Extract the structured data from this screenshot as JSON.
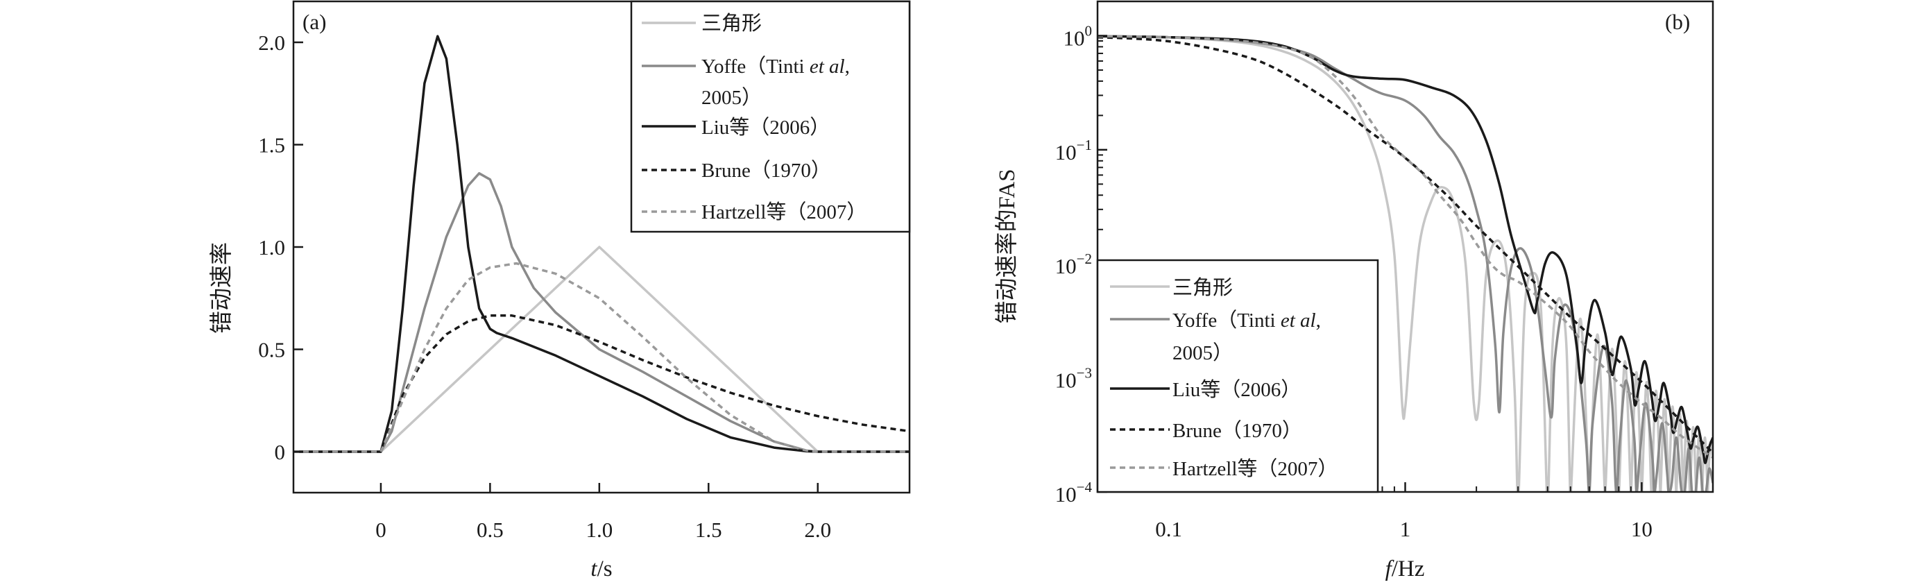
{
  "chart_data": [
    {
      "type": "line",
      "panel_label": "(a)",
      "xlabel": {
        "var": "t",
        "unit": "/s"
      },
      "ylabel": "错动速率",
      "xlim": [
        -0.4,
        2.42
      ],
      "ylim": [
        -0.2,
        2.2
      ],
      "xscale": "linear",
      "yscale": "linear",
      "grid": false,
      "legend_position": "top-right",
      "xticks": [
        {
          "v": 0,
          "label": "0"
        },
        {
          "v": 0.5,
          "label": "0.5"
        },
        {
          "v": 1.0,
          "label": "1.0"
        },
        {
          "v": 1.5,
          "label": "1.5"
        },
        {
          "v": 2.0,
          "label": "2.0"
        }
      ],
      "yticks": [
        {
          "v": 0,
          "label": "0"
        },
        {
          "v": 0.5,
          "label": "0.5"
        },
        {
          "v": 1.0,
          "label": "1.0"
        },
        {
          "v": 1.5,
          "label": "1.5"
        },
        {
          "v": 2.0,
          "label": "2.0"
        }
      ],
      "series": [
        {
          "name": "三角形",
          "color": "#c6c6c6",
          "style": "solid",
          "x": [
            -0.4,
            0,
            1,
            2,
            2.42
          ],
          "y": [
            0,
            0,
            1,
            0,
            0
          ]
        },
        {
          "name": "Yoffe (Tinti et al, 2005)",
          "color": "#8a8a8a",
          "style": "solid",
          "x": [
            -0.4,
            0,
            0.05,
            0.1,
            0.2,
            0.3,
            0.4,
            0.45,
            0.5,
            0.55,
            0.6,
            0.7,
            0.8,
            1.0,
            1.2,
            1.4,
            1.6,
            1.8,
            1.95,
            2.0,
            2.42
          ],
          "y": [
            0,
            0,
            0.1,
            0.3,
            0.7,
            1.05,
            1.3,
            1.36,
            1.33,
            1.2,
            1.0,
            0.8,
            0.68,
            0.5,
            0.39,
            0.27,
            0.15,
            0.05,
            0.005,
            0,
            0
          ]
        },
        {
          "name": "Liu等 (2006)",
          "color": "#1a1a1a",
          "style": "solid",
          "x": [
            -0.4,
            0,
            0.05,
            0.1,
            0.15,
            0.2,
            0.26,
            0.3,
            0.35,
            0.4,
            0.45,
            0.5,
            0.53,
            0.6,
            0.8,
            1.0,
            1.2,
            1.4,
            1.6,
            1.8,
            1.95,
            2.0,
            2.42
          ],
          "y": [
            0,
            0,
            0.2,
            0.7,
            1.3,
            1.8,
            2.03,
            1.92,
            1.5,
            1.0,
            0.7,
            0.6,
            0.58,
            0.555,
            0.47,
            0.37,
            0.27,
            0.16,
            0.07,
            0.02,
            0.002,
            0,
            0
          ]
        },
        {
          "name": "Brune (1970)",
          "color": "#1a1a1a",
          "style": "dashed",
          "x": [
            -0.4,
            0,
            0.1,
            0.2,
            0.3,
            0.4,
            0.5,
            0.6,
            0.8,
            1.0,
            1.2,
            1.4,
            1.6,
            1.8,
            2.0,
            2.2,
            2.42
          ],
          "y": [
            0,
            0,
            0.276,
            0.459,
            0.574,
            0.637,
            0.665,
            0.665,
            0.618,
            0.537,
            0.447,
            0.363,
            0.288,
            0.225,
            0.174,
            0.133,
            0.1
          ]
        },
        {
          "name": "Hartzell等 (2007)",
          "color": "#9a9a9a",
          "style": "dashed",
          "x": [
            -0.4,
            0,
            0.1,
            0.2,
            0.3,
            0.4,
            0.5,
            0.62,
            0.8,
            1.0,
            1.2,
            1.4,
            1.6,
            1.8,
            1.95,
            2.0,
            2.42
          ],
          "y": [
            0,
            0,
            0.25,
            0.5,
            0.7,
            0.84,
            0.9,
            0.92,
            0.87,
            0.75,
            0.56,
            0.36,
            0.18,
            0.05,
            0.005,
            0,
            0
          ]
        }
      ]
    },
    {
      "type": "line",
      "panel_label": "(b)",
      "xlabel": {
        "var": "f",
        "unit": "/Hz"
      },
      "ylabel": "错动速率的FAS",
      "xlim": [
        0.05,
        20
      ],
      "ylim": [
        0.0001,
        2
      ],
      "xscale": "log",
      "yscale": "log",
      "grid": false,
      "legend_position": "bottom-left",
      "xticks": [
        {
          "v": 0.1,
          "label": "0.1"
        },
        {
          "v": 1,
          "label": "1"
        },
        {
          "v": 10,
          "label": "10"
        }
      ],
      "yticks": [
        {
          "v": 1,
          "base": "10",
          "exp": "0"
        },
        {
          "v": 0.1,
          "base": "10",
          "exp": "−1"
        },
        {
          "v": 0.01,
          "base": "10",
          "exp": "−2"
        },
        {
          "v": 0.001,
          "base": "10",
          "exp": "−3"
        },
        {
          "v": 0.0001,
          "base": "10",
          "exp": "−4"
        }
      ],
      "series": [
        {
          "name": "三角形",
          "color": "#c6c6c6",
          "style": "solid",
          "x": [
            0.05,
            0.1,
            0.2,
            0.3,
            0.4,
            0.5,
            0.6,
            0.7,
            0.8,
            0.9,
            0.97,
            1.0,
            1.05,
            1.15,
            1.3,
            1.43,
            1.6,
            1.8,
            1.95,
            2.05,
            2.2,
            2.46,
            2.7,
            2.9,
            2.98,
            3.02,
            3.2,
            3.47,
            3.75,
            3.97,
            4.03,
            4.2,
            4.48,
            4.8,
            4.98,
            5.02,
            5.5,
            5.98,
            6.02,
            6.5,
            6.98,
            7.02,
            7.5,
            7.98,
            8.02,
            8.5,
            8.98,
            9.02,
            9.5,
            9.98,
            10.02,
            10.5,
            10.98,
            11.02,
            11.5,
            11.98,
            12.02,
            12.5,
            12.98,
            13.02,
            13.5,
            13.98,
            14.02,
            14.5,
            14.98,
            15.02,
            15.5,
            15.98,
            16.02,
            16.5,
            16.98,
            17.02,
            17.5,
            17.98,
            18.02,
            18.5,
            18.98,
            19.02,
            19.5,
            20
          ],
          "y": [
            0.99,
            0.97,
            0.875,
            0.737,
            0.57,
            0.405,
            0.255,
            0.135,
            0.055,
            0.012,
            0.0006,
            0.00055,
            0.002,
            0.015,
            0.037,
            0.047,
            0.035,
            0.01,
            0.0006,
            0.0006,
            0.008,
            0.016,
            0.008,
            0.0008,
            0.0001,
            0.0001,
            0.004,
            0.0083,
            0.004,
            0.0001,
            0.0001,
            0.002,
            0.005,
            0.002,
            0.0001,
            0.0001,
            0.0033,
            0.0001,
            0.0001,
            0.0024,
            0.0001,
            0.0001,
            0.0018,
            0.0001,
            0.0001,
            0.0014,
            0.0001,
            0.0001,
            0.00112,
            0.0001,
            0.0001,
            0.00092,
            0.0001,
            0.0001,
            0.00077,
            0.0001,
            0.0001,
            0.00065,
            0.0001,
            0.0001,
            0.00056,
            0.0001,
            0.0001,
            0.00048,
            0.0001,
            0.0001,
            0.00042,
            0.0001,
            0.0001,
            0.00037,
            0.0001,
            0.0001,
            0.00033,
            0.0001,
            0.0001,
            0.0003,
            0.0001,
            0.0001,
            0.00027,
            0.0002
          ]
        },
        {
          "name": "Yoffe (Tinti et al, 2005)",
          "color": "#8a8a8a",
          "style": "solid",
          "x": [
            0.05,
            0.1,
            0.2,
            0.3,
            0.4,
            0.5,
            0.6,
            0.7,
            0.8,
            1.0,
            1.2,
            1.4,
            1.6,
            1.8,
            2.0,
            2.2,
            2.4,
            2.5,
            2.6,
            2.8,
            3.1,
            3.5,
            3.9,
            4.15,
            4.3,
            4.68,
            5.2,
            5.8,
            6.0,
            6.2,
            6.9,
            7.5,
            7.8,
            8.1,
            8.6,
            9.3,
            9.5,
            9.8,
            10.4,
            11.1,
            11.3,
            11.6,
            12.2,
            12.8,
            13.0,
            13.4,
            14.0,
            14.6,
            14.8,
            15.2,
            15.8,
            16.3,
            16.5,
            16.9,
            17.5,
            18.1,
            18.3,
            18.7,
            19.3,
            20
          ],
          "y": [
            0.99,
            0.97,
            0.9,
            0.8,
            0.68,
            0.52,
            0.42,
            0.35,
            0.31,
            0.27,
            0.2,
            0.13,
            0.095,
            0.06,
            0.03,
            0.012,
            0.002,
            0.0005,
            0.0025,
            0.009,
            0.0136,
            0.007,
            0.0012,
            0.00045,
            0.0015,
            0.0043,
            0.0025,
            0.0003,
            0.0001,
            0.0004,
            0.0019,
            0.0006,
            0.0001,
            0.0003,
            0.00095,
            0.0003,
            0.0001,
            0.0002,
            0.0006,
            0.0002,
            0.0001,
            0.00015,
            0.0004,
            0.00015,
            0.0001,
            0.00012,
            0.0003,
            0.00012,
            0.0001,
            0.0001,
            0.00024,
            0.0001,
            0.0001,
            0.0001,
            0.0002,
            0.0001,
            0.0001,
            0.0001,
            0.00016,
            0.00012
          ]
        },
        {
          "name": "Liu等 (2006)",
          "color": "#1a1a1a",
          "style": "solid",
          "x": [
            0.05,
            0.1,
            0.2,
            0.3,
            0.4,
            0.5,
            0.6,
            0.8,
            1.0,
            1.3,
            1.6,
            1.9,
            2.2,
            2.5,
            2.8,
            3.2,
            3.5,
            3.6,
            3.9,
            4.25,
            4.8,
            5.3,
            5.55,
            5.8,
            6.3,
            7.0,
            7.45,
            7.7,
            8.2,
            9.0,
            9.35,
            9.7,
            10.3,
            11.0,
            11.4,
            11.9,
            12.4,
            13.2,
            13.6,
            14.2,
            14.8,
            15.6,
            16.1,
            16.6,
            17.3,
            18.2,
            18.6,
            19.2,
            20
          ],
          "y": [
            0.99,
            0.97,
            0.92,
            0.82,
            0.65,
            0.5,
            0.44,
            0.42,
            0.41,
            0.35,
            0.3,
            0.22,
            0.12,
            0.05,
            0.018,
            0.007,
            0.0038,
            0.0045,
            0.01,
            0.0125,
            0.008,
            0.002,
            0.0009,
            0.002,
            0.0048,
            0.0025,
            0.0011,
            0.0013,
            0.0023,
            0.0012,
            0.00058,
            0.0008,
            0.0014,
            0.0007,
            0.00042,
            0.0006,
            0.0009,
            0.0005,
            0.00033,
            0.00045,
            0.00055,
            0.00033,
            0.00024,
            0.0003,
            0.00037,
            0.00022,
            0.00018,
            0.00024,
            0.0003
          ]
        },
        {
          "name": "Brune (1970)",
          "color": "#1a1a1a",
          "style": "dashed",
          "x": [
            0.05,
            0.1,
            0.2,
            0.3,
            0.5,
            0.7,
            1.0,
            1.5,
            2.0,
            3.0,
            5.0,
            7.0,
            10,
            15,
            20
          ],
          "y": [
            0.971,
            0.894,
            0.677,
            0.483,
            0.251,
            0.147,
            0.085,
            0.04,
            0.0215,
            0.0095,
            0.0034,
            0.0018,
            0.00092,
            0.0004,
            0.00022
          ]
        },
        {
          "name": "Hartzell等 (2007)",
          "color": "#9a9a9a",
          "style": "dashed",
          "x": [
            0.05,
            0.1,
            0.2,
            0.3,
            0.4,
            0.5,
            0.6,
            0.7,
            0.8,
            1.0,
            1.2,
            1.4,
            1.7,
            2.0,
            2.3,
            2.6,
            3.0,
            3.5,
            4.2,
            5,
            6,
            7,
            8,
            10,
            12,
            15,
            20
          ],
          "y": [
            0.99,
            0.97,
            0.9,
            0.8,
            0.65,
            0.45,
            0.3,
            0.19,
            0.13,
            0.085,
            0.06,
            0.04,
            0.025,
            0.015,
            0.01,
            0.008,
            0.007,
            0.0055,
            0.004,
            0.0028,
            0.0017,
            0.0012,
            0.0009,
            0.0006,
            0.00045,
            0.0003,
            0.0002
          ]
        }
      ]
    }
  ],
  "legend_labels": {
    "triangle": "三角形",
    "yoffe_line1_prefix": "Yoffe（Tinti ",
    "yoffe_line1_italic": "et al",
    "yoffe_line1_suffix": ",",
    "yoffe_line2": "2005）",
    "liu": "Liu等（2006）",
    "brune": "Brune（1970）",
    "hartzell": "Hartzell等（2007）"
  }
}
